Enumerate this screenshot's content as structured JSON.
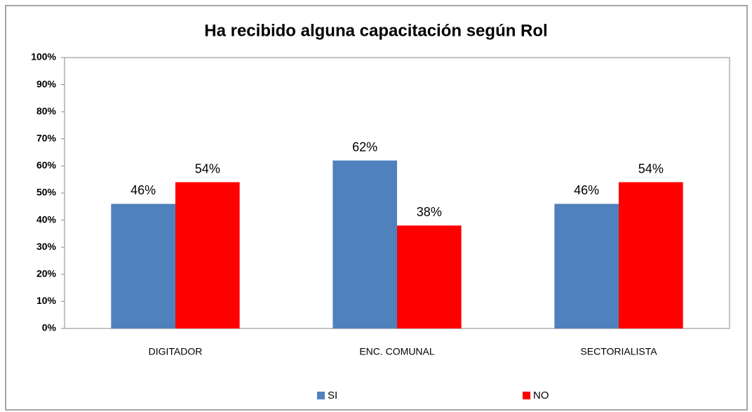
{
  "chart_data": {
    "type": "bar",
    "title": "Ha recibido alguna capacitación según Rol",
    "categories": [
      "DIGITADOR",
      "ENC. COMUNAL",
      "SECTORIALISTA"
    ],
    "series": [
      {
        "name": "SI",
        "color": "#4f81bd",
        "values": [
          46,
          62,
          46
        ],
        "value_labels": [
          "46%",
          "62%",
          "46%"
        ]
      },
      {
        "name": "NO",
        "color": "#ff0000",
        "values": [
          54,
          38,
          54
        ],
        "value_labels": [
          "54%",
          "38%",
          "54%"
        ]
      }
    ],
    "ylim": [
      0,
      100
    ],
    "yticks": [
      {
        "value": 0,
        "label": "0%"
      },
      {
        "value": 10,
        "label": "10%"
      },
      {
        "value": 20,
        "label": "20%"
      },
      {
        "value": 30,
        "label": "30%"
      },
      {
        "value": 40,
        "label": "40%"
      },
      {
        "value": 50,
        "label": "50%"
      },
      {
        "value": 60,
        "label": "60%"
      },
      {
        "value": 70,
        "label": "70%"
      },
      {
        "value": 80,
        "label": "80%"
      },
      {
        "value": 90,
        "label": "90%"
      },
      {
        "value": 100,
        "label": "100%"
      }
    ],
    "grid": false,
    "legend": "bottom"
  }
}
